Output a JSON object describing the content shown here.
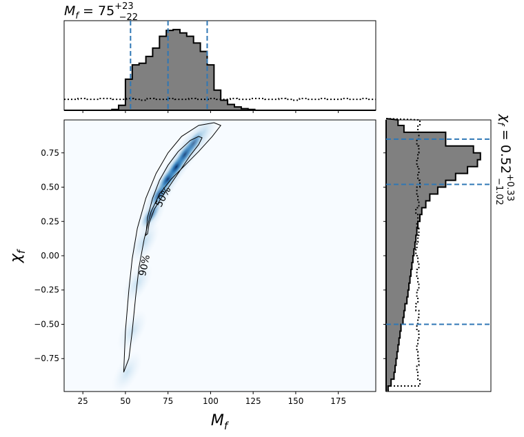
{
  "chart_data": {
    "type": "corner",
    "top_title": {
      "base": "M",
      "sub": "f",
      "eq": " = 75",
      "sup": "+23",
      "low": "−22"
    },
    "right_title": {
      "base": "χ",
      "sub": "f",
      "eq": " = 0.52",
      "sup": "+0.33",
      "low": "−1.02"
    },
    "xlabel": {
      "base": "M",
      "sub": "f"
    },
    "ylabel": {
      "base": "χ",
      "sub": "f"
    },
    "xlim": [
      14,
      197
    ],
    "ylim": [
      -0.99,
      0.99
    ],
    "x_ticks": [
      25,
      50,
      75,
      100,
      125,
      150,
      175
    ],
    "x_tick_labels": [
      "25",
      "50",
      "75",
      "100",
      "125",
      "150",
      "175"
    ],
    "y_ticks": [
      -0.75,
      -0.5,
      -0.25,
      0.0,
      0.25,
      0.5,
      0.75
    ],
    "y_tick_labels": [
      "−0.75",
      "−0.50",
      "−0.25",
      "0.00",
      "0.25",
      "0.50",
      "0.75"
    ],
    "contour_labels": [
      {
        "text": "50%",
        "x": 72,
        "y": 0.43,
        "angle": -62
      },
      {
        "text": "90%",
        "x": 61,
        "y": -0.07,
        "angle": -78
      }
    ],
    "contour_50": [
      [
        62,
        0.15
      ],
      [
        63,
        0.28
      ],
      [
        66,
        0.42
      ],
      [
        70,
        0.55
      ],
      [
        75,
        0.66
      ],
      [
        81,
        0.76
      ],
      [
        88,
        0.84
      ],
      [
        93,
        0.87
      ],
      [
        95,
        0.86
      ],
      [
        93,
        0.81
      ],
      [
        88,
        0.73
      ],
      [
        82,
        0.62
      ],
      [
        76,
        0.51
      ],
      [
        71,
        0.42
      ],
      [
        67,
        0.34
      ],
      [
        64,
        0.24
      ],
      [
        63,
        0.16
      ]
    ],
    "contour_90": [
      [
        49,
        -0.85
      ],
      [
        50,
        -0.55
      ],
      [
        52,
        -0.25
      ],
      [
        54,
        -0.02
      ],
      [
        57,
        0.2
      ],
      [
        62,
        0.42
      ],
      [
        68,
        0.6
      ],
      [
        75,
        0.75
      ],
      [
        83,
        0.87
      ],
      [
        93,
        0.95
      ],
      [
        102,
        0.97
      ],
      [
        106,
        0.95
      ],
      [
        101,
        0.87
      ],
      [
        93,
        0.76
      ],
      [
        85,
        0.66
      ],
      [
        77,
        0.56
      ],
      [
        70,
        0.45
      ],
      [
        65,
        0.32
      ],
      [
        61,
        0.12
      ],
      [
        58,
        -0.08
      ],
      [
        56,
        -0.3
      ],
      [
        54,
        -0.55
      ],
      [
        52,
        -0.75
      ]
    ],
    "marginal_x": {
      "bin_width": 4,
      "bin_starts": [
        42,
        46,
        50,
        54,
        58,
        62,
        66,
        70,
        74,
        78,
        82,
        86,
        90,
        94,
        98,
        102,
        106,
        110,
        114,
        118,
        122,
        126
      ],
      "posterior": [
        1,
        6,
        37,
        54,
        56,
        64,
        74,
        88,
        95,
        96,
        92,
        88,
        80,
        70,
        54,
        24,
        12,
        7,
        4,
        2,
        1,
        0
      ],
      "prior": [
        13,
        13,
        14,
        13,
        13,
        14,
        14,
        13,
        13,
        14,
        13,
        12,
        14,
        13,
        13,
        14,
        13,
        13,
        14,
        13,
        13,
        14
      ]
    },
    "marginal_y": {
      "bin_width": 0.05,
      "bin_starts": [
        0.95,
        0.9,
        0.85,
        0.8,
        0.75,
        0.7,
        0.65,
        0.6,
        0.55,
        0.5,
        0.45,
        0.4,
        0.35,
        0.3,
        0.25,
        0.2,
        0.15,
        0.1,
        0.05,
        0.0,
        -0.05,
        -0.1,
        -0.15,
        -0.2,
        -0.25,
        -0.3,
        -0.35,
        -0.4,
        -0.45,
        -0.5,
        -0.55,
        -0.6,
        -0.65,
        -0.7,
        -0.75,
        -0.8,
        -0.85,
        -0.9,
        -0.95,
        -1.0
      ],
      "posterior": [
        12,
        18,
        60,
        60,
        88,
        95,
        92,
        82,
        70,
        60,
        52,
        44,
        40,
        36,
        34,
        32,
        31,
        30,
        29,
        28,
        27,
        26,
        25,
        24,
        23,
        22,
        21,
        19,
        18,
        17,
        15,
        14,
        13,
        12,
        11,
        10,
        9,
        8,
        5,
        2
      ],
      "prior": [
        34,
        32,
        33,
        31,
        33,
        32,
        31,
        33,
        32,
        34,
        31,
        32,
        33,
        30,
        32,
        31,
        33,
        32,
        31,
        30,
        32,
        33,
        31,
        32,
        33,
        31,
        32,
        30,
        33,
        32,
        31,
        33,
        32,
        31,
        32,
        33,
        31,
        32,
        34,
        2
      ]
    },
    "top_vlines": [
      53,
      75,
      98
    ],
    "right_hlines": [
      0.85,
      0.52,
      -0.5
    ],
    "colors": {
      "hist_fill": "#808080",
      "line": "#000000",
      "dash": "#2f77b5",
      "map_dark": "#08306b",
      "map_light": "#f7fbff"
    }
  }
}
